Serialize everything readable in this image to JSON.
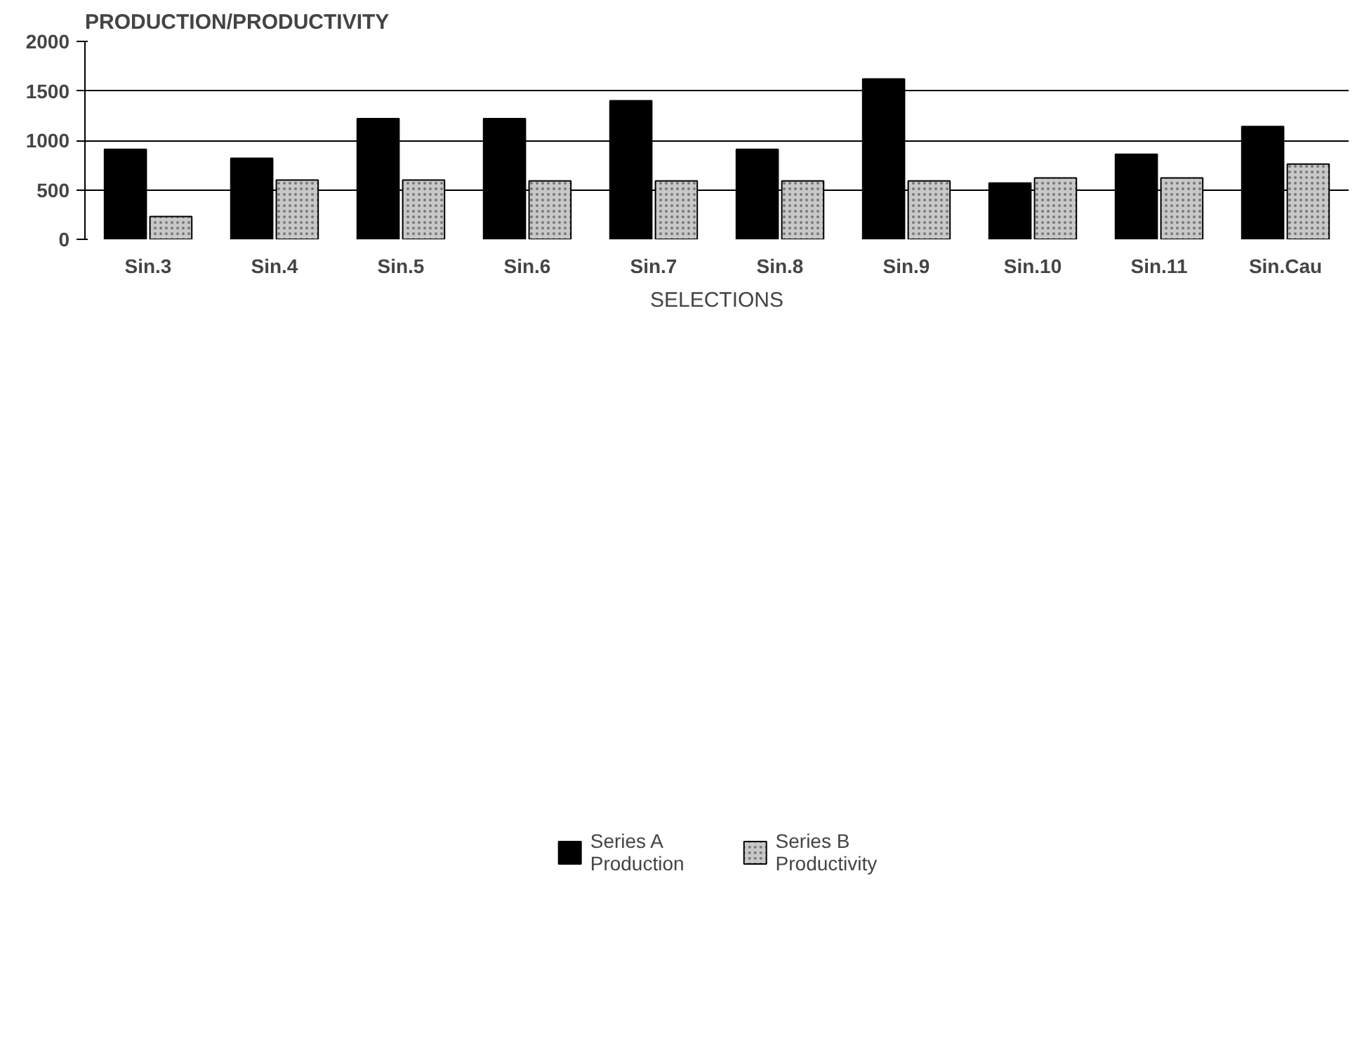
{
  "chart_data": {
    "type": "bar",
    "title": "PRODUCTION/PRODUCTIVITY",
    "xlabel": "SELECTIONS",
    "categories": [
      "Sin.3",
      "Sin.4",
      "Sin.5",
      "Sin.6",
      "Sin.7",
      "Sin.8",
      "Sin.9",
      "Sin.10",
      "Sin.11",
      "Sin.Cau"
    ],
    "series": [
      {
        "name": "Series A\nProduction",
        "color": "#000000",
        "values": [
          910,
          820,
          1220,
          1220,
          1400,
          910,
          1620,
          570,
          860,
          1140
        ]
      },
      {
        "name": "Series B\nProductivity",
        "color": "#c8c8c8",
        "values": [
          230,
          600,
          600,
          590,
          590,
          590,
          590,
          620,
          620,
          760
        ]
      }
    ],
    "ylim": [
      0,
      2000
    ],
    "yticks": [
      0,
      500,
      1000,
      1500,
      2000
    ],
    "grid": "y",
    "legend": "bottom"
  }
}
